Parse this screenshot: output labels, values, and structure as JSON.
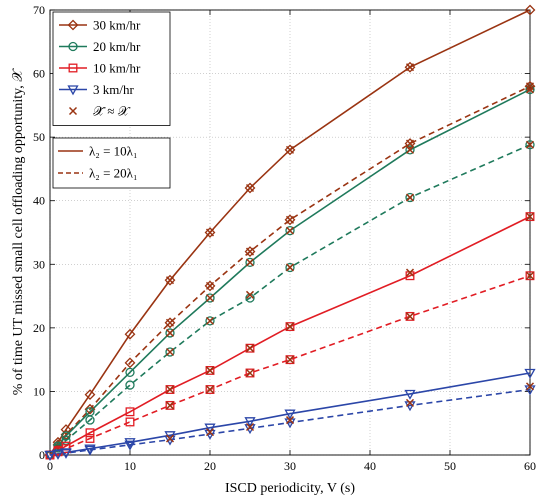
{
  "chart_data": {
    "type": "line",
    "xlabel": "ISCD periodicity, V (s)",
    "ylabel": "% of time UT missed small cell offloading opportunity, 𝒳",
    "xlim": [
      0,
      60
    ],
    "ylim": [
      0,
      70
    ],
    "xticks": [
      0,
      10,
      20,
      30,
      40,
      50,
      60
    ],
    "yticks": [
      0,
      10,
      20,
      30,
      40,
      50,
      60,
      70
    ],
    "grid": true,
    "legend_speed": {
      "placement": "top-left",
      "entries": [
        {
          "label": "30 km/hr",
          "color": "#9a3412",
          "marker": "diamond"
        },
        {
          "label": "20 km/hr",
          "color": "#1f7a5c",
          "marker": "circle"
        },
        {
          "label": "10 km/hr",
          "color": "#e11d24",
          "marker": "square"
        },
        {
          "label": "3 km/hr",
          "color": "#2b46a8",
          "marker": "triangle-down"
        },
        {
          "label": "𝒳̃ ≈ 𝒳",
          "color": "#9a3412",
          "marker": "x"
        }
      ]
    },
    "legend_density": {
      "placement": "upper-left",
      "entries": [
        {
          "label": "λ₂ = 10λ₁",
          "style": "solid"
        },
        {
          "label": "λ₂ = 20λ₁",
          "style": "dashed"
        }
      ]
    },
    "x": [
      0,
      1,
      2,
      5,
      10,
      15,
      20,
      25,
      30,
      45,
      60
    ],
    "series": [
      {
        "speed": "30 km/hr",
        "density": "λ₂ = 10λ₁",
        "style": "solid",
        "color": "#9a3412",
        "marker": "diamond",
        "values": [
          0,
          2,
          4,
          9.5,
          19,
          27.5,
          35,
          42,
          48,
          61,
          70
        ]
      },
      {
        "speed": "30 km/hr",
        "density": "λ₂ = 20λ₁",
        "style": "dashed",
        "color": "#9a3412",
        "marker": "diamond",
        "values": [
          0,
          1.6,
          3.2,
          7.2,
          14.5,
          20.8,
          26.6,
          32,
          37,
          49,
          58
        ]
      },
      {
        "speed": "20 km/hr",
        "density": "λ₂ = 10λ₁",
        "style": "solid",
        "color": "#1f7a5c",
        "marker": "circle",
        "values": [
          0,
          1.4,
          3,
          6.8,
          13,
          19.2,
          24.7,
          30.3,
          35.3,
          48,
          57.5
        ]
      },
      {
        "speed": "20 km/hr",
        "density": "λ₂ = 20λ₁",
        "style": "dashed",
        "color": "#1f7a5c",
        "marker": "circle",
        "values": [
          0,
          1.1,
          2.3,
          5.5,
          11,
          16.2,
          21.1,
          24.7,
          29.5,
          40.5,
          48.8
        ]
      },
      {
        "speed": "10 km/hr",
        "density": "λ₂ = 10λ₁",
        "style": "solid",
        "color": "#e11d24",
        "marker": "square",
        "values": [
          0,
          0.7,
          1.4,
          3.5,
          6.8,
          10.3,
          13.3,
          16.8,
          20.2,
          28.2,
          37.5
        ]
      },
      {
        "speed": "10 km/hr",
        "density": "λ₂ = 20λ₁",
        "style": "dashed",
        "color": "#e11d24",
        "marker": "square",
        "values": [
          0,
          0.5,
          1,
          2.6,
          5.2,
          7.8,
          10.3,
          12.9,
          15,
          21.8,
          28.2
        ]
      },
      {
        "speed": "3 km/hr",
        "density": "λ₂ = 10λ₁",
        "style": "solid",
        "color": "#2b46a8",
        "marker": "triangle-down",
        "values": [
          0,
          0.2,
          0.4,
          1,
          2,
          3.1,
          4.3,
          5.3,
          6.5,
          9.6,
          12.9
        ]
      },
      {
        "speed": "3 km/hr",
        "density": "λ₂ = 20λ₁",
        "style": "dashed",
        "color": "#2b46a8",
        "marker": "triangle-down",
        "values": [
          0,
          0.15,
          0.3,
          0.8,
          1.6,
          2.4,
          3.3,
          4.2,
          5.1,
          7.8,
          10.3
        ]
      }
    ],
    "approximation_markers": [
      {
        "x": 15,
        "y": 27.5
      },
      {
        "x": 20,
        "y": 35
      },
      {
        "x": 25,
        "y": 42
      },
      {
        "x": 30,
        "y": 48
      },
      {
        "x": 45,
        "y": 61
      },
      {
        "x": 15,
        "y": 20.8
      },
      {
        "x": 20,
        "y": 26.6
      },
      {
        "x": 25,
        "y": 32
      },
      {
        "x": 30,
        "y": 37
      },
      {
        "x": 45,
        "y": 49
      },
      {
        "x": 60,
        "y": 58
      },
      {
        "x": 15,
        "y": 19.2
      },
      {
        "x": 20,
        "y": 24.7
      },
      {
        "x": 25,
        "y": 30.3
      },
      {
        "x": 30,
        "y": 35.3
      },
      {
        "x": 45,
        "y": 48
      },
      {
        "x": 60,
        "y": 57.5
      },
      {
        "x": 15,
        "y": 16.2
      },
      {
        "x": 20,
        "y": 21.1
      },
      {
        "x": 25,
        "y": 25.2
      },
      {
        "x": 30,
        "y": 29.5
      },
      {
        "x": 45,
        "y": 40.5
      },
      {
        "x": 60,
        "y": 48.8
      },
      {
        "x": 15,
        "y": 10.3
      },
      {
        "x": 20,
        "y": 13.3
      },
      {
        "x": 25,
        "y": 16.8
      },
      {
        "x": 30,
        "y": 20.2
      },
      {
        "x": 45,
        "y": 28.7
      },
      {
        "x": 60,
        "y": 37.5
      },
      {
        "x": 15,
        "y": 7.8
      },
      {
        "x": 20,
        "y": 10.3
      },
      {
        "x": 25,
        "y": 12.9
      },
      {
        "x": 30,
        "y": 15
      },
      {
        "x": 45,
        "y": 21.8
      },
      {
        "x": 60,
        "y": 28.2
      },
      {
        "x": 15,
        "y": 2.6
      },
      {
        "x": 20,
        "y": 3.6
      },
      {
        "x": 25,
        "y": 4.4
      },
      {
        "x": 30,
        "y": 5.5
      },
      {
        "x": 45,
        "y": 8.2
      },
      {
        "x": 60,
        "y": 10.8
      }
    ]
  }
}
